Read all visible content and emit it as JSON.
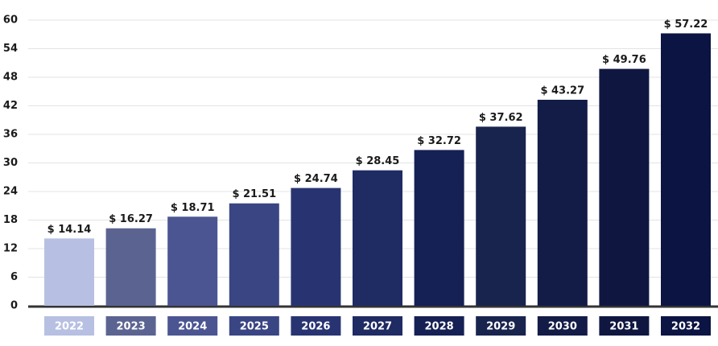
{
  "chart_data": {
    "type": "bar",
    "categories": [
      "2022",
      "2023",
      "2024",
      "2025",
      "2026",
      "2027",
      "2028",
      "2029",
      "2030",
      "2031",
      "2032"
    ],
    "values": [
      14.14,
      16.27,
      18.71,
      21.51,
      24.74,
      28.45,
      32.72,
      37.62,
      43.27,
      49.76,
      57.22
    ],
    "value_labels": [
      "$ 14.14",
      "$ 16.27",
      "$ 18.71",
      "$ 21.51",
      "$ 24.74",
      "$ 28.45",
      "$ 32.72",
      "$ 37.62",
      "$ 43.27",
      "$ 49.76",
      "$ 57.22"
    ],
    "colors": [
      "#b7c0e2",
      "#5b6491",
      "#4b5591",
      "#3a4583",
      "#283472",
      "#1f2b63",
      "#152054",
      "#19244e",
      "#131b47",
      "#0f1741",
      "#0b1443"
    ],
    "ylim": [
      0,
      60
    ],
    "yticks": [
      0,
      6,
      12,
      18,
      24,
      30,
      36,
      42,
      48,
      54,
      60
    ],
    "grid": true
  }
}
